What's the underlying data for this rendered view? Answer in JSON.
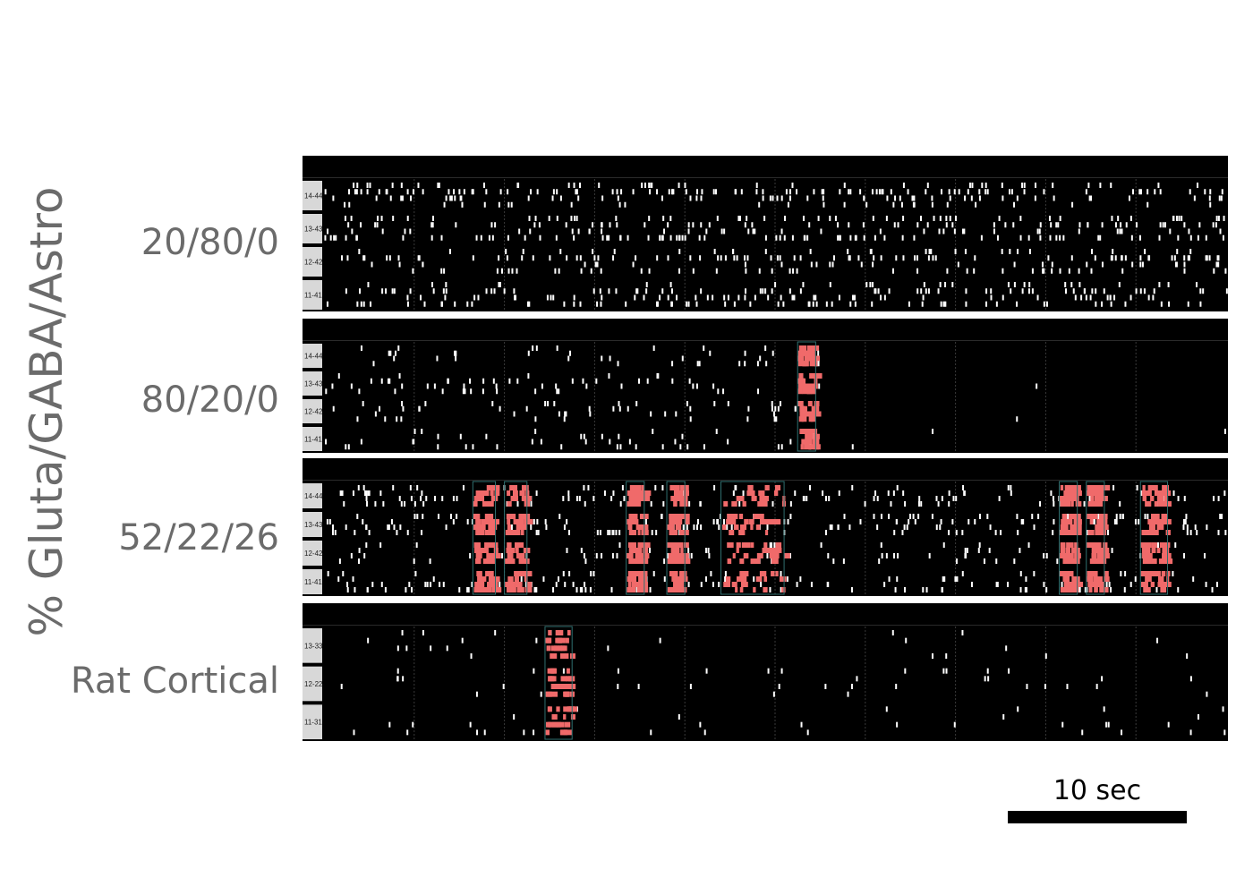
{
  "chart_data": {
    "type": "raster",
    "ylabel": "% Gluta/GABA/Astro",
    "panels": [
      {
        "label": "20/80/0",
        "channels": [
          "14-44",
          "13-43",
          "12-42",
          "11-41"
        ],
        "seed": 11,
        "density": 0.55,
        "bursts": []
      },
      {
        "label": "80/20/0",
        "channels": [
          "14-44",
          "13-43",
          "12-42",
          "11-41"
        ],
        "seed": 23,
        "density": 0.18,
        "silent_after": 0.55,
        "bursts": [
          [
            0.525,
            0.545
          ]
        ]
      },
      {
        "label": "52/22/26",
        "channels": [
          "14-44",
          "13-43",
          "12-42",
          "11-41"
        ],
        "seed": 37,
        "density": 0.3,
        "bursts": [
          [
            0.165,
            0.19
          ],
          [
            0.2,
            0.225
          ],
          [
            0.335,
            0.355
          ],
          [
            0.38,
            0.4
          ],
          [
            0.44,
            0.51
          ],
          [
            0.815,
            0.835
          ],
          [
            0.845,
            0.865
          ],
          [
            0.905,
            0.935
          ]
        ]
      },
      {
        "label": "Rat Cortical",
        "channels": [
          "13-33",
          "12-22",
          "11-31"
        ],
        "seed": 53,
        "density": 0.08,
        "bursts": [
          [
            0.245,
            0.275
          ]
        ]
      }
    ],
    "scale_bar": "10 sec"
  },
  "colors": {
    "spike": "#ffffff",
    "burst": "#f06a6a",
    "panel_bg": "#000000",
    "label_box": "#d8d8d8"
  }
}
